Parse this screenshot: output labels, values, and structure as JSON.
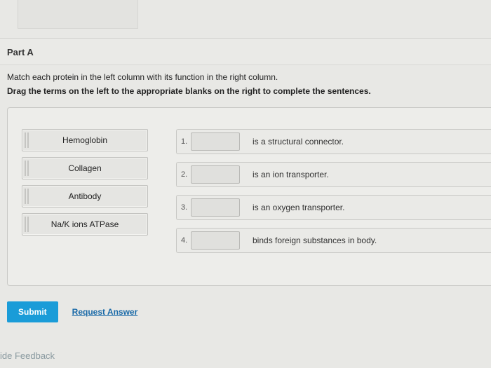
{
  "part": {
    "label": "Part A"
  },
  "instructions": {
    "line1": "Match each protein in the left column with its function in the right column.",
    "line2": "Drag the terms on the left to the appropriate blanks on the right to complete the sentences."
  },
  "terms": [
    {
      "label": "Hemoglobin"
    },
    {
      "label": "Collagen"
    },
    {
      "label": "Antibody"
    },
    {
      "label": "Na/K ions ATPase"
    }
  ],
  "blanks": [
    {
      "num": "1.",
      "text": "is a structural connector."
    },
    {
      "num": "2.",
      "text": "is an ion transporter."
    },
    {
      "num": "3.",
      "text": "is an oxygen transporter."
    },
    {
      "num": "4.",
      "text": "binds foreign substances in body."
    }
  ],
  "actions": {
    "submit": "Submit",
    "request": "Request Answer"
  },
  "footer": {
    "feedback": "ide Feedback"
  },
  "colors": {
    "submit_bg": "#1a9cd8",
    "link": "#1a6aa8",
    "page_bg": "#e8e8e5"
  }
}
